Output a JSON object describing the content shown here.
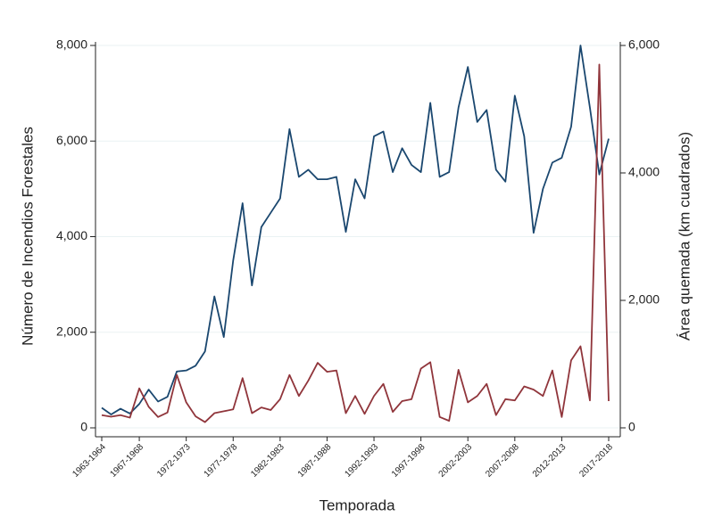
{
  "chart_data": {
    "type": "line",
    "x_label": "Temporada",
    "y_label": "Número de Incendios Forestales",
    "y2_label": "Área quemada (km cuadrados)",
    "categories": [
      "1963-1964",
      null,
      null,
      null,
      "1967-1968",
      null,
      null,
      null,
      null,
      "1972-1973",
      null,
      null,
      null,
      null,
      "1977-1978",
      null,
      null,
      null,
      null,
      "1982-1983",
      null,
      null,
      null,
      null,
      "1987-1988",
      null,
      null,
      null,
      null,
      "1992-1993",
      null,
      null,
      null,
      null,
      "1997-1998",
      null,
      null,
      null,
      null,
      "2002-2003",
      null,
      null,
      null,
      null,
      "2007-2008",
      null,
      null,
      null,
      null,
      "2012-2013",
      null,
      null,
      null,
      null,
      "2017-2018"
    ],
    "series": [
      {
        "color": "#1a476f",
        "values": [
          420,
          280,
          400,
          300,
          500,
          800,
          550,
          650,
          1180,
          1200,
          1300,
          1600,
          2750,
          1900,
          3500,
          4700,
          2980,
          4200,
          4500,
          4800,
          6250,
          5250,
          5400,
          5200,
          5200,
          5250,
          4100,
          5200,
          4800,
          6100,
          6200,
          5350,
          5850,
          5500,
          5350,
          6800,
          5250,
          5350,
          6700,
          7550,
          6400,
          6650,
          5400,
          5150,
          6950,
          6100,
          4080,
          5000,
          5550,
          5650,
          6300,
          8000,
          6700,
          5300,
          6050
        ]
      },
      {
        "color": "#90353b",
        "axis": "y2",
        "values": [
          200,
          175,
          200,
          160,
          620,
          330,
          170,
          240,
          830,
          400,
          180,
          90,
          230,
          260,
          290,
          780,
          230,
          320,
          280,
          450,
          830,
          500,
          740,
          1020,
          880,
          900,
          230,
          500,
          220,
          500,
          690,
          250,
          420,
          450,
          930,
          1030,
          170,
          110,
          910,
          400,
          500,
          690,
          200,
          450,
          430,
          650,
          600,
          500,
          900,
          170,
          1060,
          1280,
          430,
          5700,
          420
        ]
      }
    ],
    "ylim": [
      0,
      8000
    ],
    "yticks": [
      0,
      {
        "value": 2000,
        "label": "2,000"
      },
      {
        "value": 4000,
        "label": "4,000"
      },
      {
        "value": 6000,
        "label": "6,000"
      },
      {
        "value": 8000,
        "label": "8,000"
      }
    ],
    "y2lim": [
      0,
      6000
    ],
    "y2ticks": [
      0,
      {
        "value": 2000,
        "label": "2,000"
      },
      {
        "value": 4000,
        "label": "4,000"
      },
      {
        "value": 6000,
        "label": "6,000"
      }
    ],
    "grid": true
  }
}
